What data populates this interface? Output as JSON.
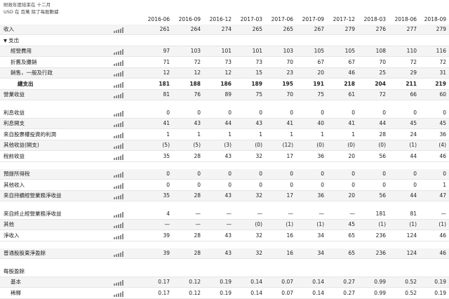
{
  "header": {
    "note_fiscal": "財政年度結束在 十二月",
    "note_units": "USD 在 百萬 除了每股數據"
  },
  "columns": [
    "2016-06",
    "2016-09",
    "2016-12",
    "2017-03",
    "2017-06",
    "2017-09",
    "2017-12",
    "2018-03",
    "2018-06",
    "2018-09"
  ],
  "icons": {
    "sparkline": "bar-chart-icon",
    "expand": "triangle-down-icon"
  },
  "rows": [
    {
      "type": "data",
      "label": "收入",
      "indent": 0,
      "spark": true,
      "values": [
        "261",
        "264",
        "274",
        "265",
        "265",
        "267",
        "279",
        "276",
        "277",
        "279"
      ]
    },
    {
      "type": "section",
      "label": "支出",
      "indent": 0,
      "spark": false,
      "values": []
    },
    {
      "type": "data",
      "label": "經營費用",
      "indent": 1,
      "spark": true,
      "values": [
        "97",
        "103",
        "101",
        "101",
        "103",
        "105",
        "105",
        "108",
        "110",
        "116"
      ]
    },
    {
      "type": "data",
      "label": "折舊及攤銷",
      "indent": 1,
      "spark": true,
      "values": [
        "71",
        "72",
        "73",
        "73",
        "70",
        "67",
        "67",
        "70",
        "72",
        "72"
      ]
    },
    {
      "type": "data",
      "label": "銷售，一般及行政",
      "indent": 1,
      "spark": true,
      "values": [
        "12",
        "12",
        "12",
        "15",
        "23",
        "20",
        "46",
        "25",
        "29",
        "31"
      ]
    },
    {
      "type": "data",
      "label": "總支出",
      "indent": 2,
      "bold": true,
      "spark": true,
      "values": [
        "181",
        "188",
        "186",
        "189",
        "195",
        "191",
        "218",
        "204",
        "211",
        "219"
      ]
    },
    {
      "type": "data",
      "label": "營業收益",
      "indent": 0,
      "spark": true,
      "values": [
        "81",
        "76",
        "89",
        "75",
        "70",
        "75",
        "61",
        "72",
        "66",
        "60"
      ]
    },
    {
      "type": "gap"
    },
    {
      "type": "data",
      "label": "利息收益",
      "indent": 0,
      "spark": true,
      "values": [
        "0",
        "0",
        "0",
        "0",
        "0",
        "0",
        "0",
        "0",
        "0",
        "0"
      ]
    },
    {
      "type": "data",
      "label": "利息開支",
      "indent": 0,
      "spark": true,
      "values": [
        "41",
        "43",
        "44",
        "43",
        "41",
        "40",
        "41",
        "44",
        "45",
        "45"
      ]
    },
    {
      "type": "data",
      "label": "來自股票權投資的利潤",
      "indent": 0,
      "spark": true,
      "values": [
        "1",
        "1",
        "1",
        "1",
        "1",
        "1",
        "1",
        "28",
        "24",
        "36"
      ]
    },
    {
      "type": "data",
      "label": "其他收益(開支)",
      "indent": 0,
      "spark": true,
      "values": [
        "(5)",
        "(5)",
        "(3)",
        "(0)",
        "(12)",
        "(0)",
        "(0)",
        "(0)",
        "(1)",
        "(4)"
      ]
    },
    {
      "type": "data",
      "label": "稅前收益",
      "indent": 0,
      "spark": true,
      "values": [
        "35",
        "28",
        "43",
        "32",
        "17",
        "36",
        "20",
        "56",
        "44",
        "46"
      ]
    },
    {
      "type": "gap"
    },
    {
      "type": "data",
      "label": "預提所得稅",
      "indent": 0,
      "spark": true,
      "values": [
        "0",
        "0",
        "0",
        "0",
        "0",
        "0",
        "0",
        "0",
        "0",
        "0"
      ]
    },
    {
      "type": "data",
      "label": "其他收入",
      "indent": 0,
      "spark": true,
      "values": [
        "0",
        "0",
        "0",
        "0",
        "0",
        "0",
        "0",
        "0",
        "0",
        "1"
      ]
    },
    {
      "type": "data",
      "label": "來自持續經營業務淨收益",
      "indent": 0,
      "spark": true,
      "values": [
        "35",
        "28",
        "43",
        "32",
        "17",
        "36",
        "20",
        "56",
        "44",
        "47"
      ]
    },
    {
      "type": "gap"
    },
    {
      "type": "data",
      "label": "來自終止經營業務淨收益",
      "indent": 0,
      "spark": true,
      "values": [
        "4",
        "—",
        "—",
        "—",
        "—",
        "—",
        "—",
        "181",
        "81",
        "—"
      ]
    },
    {
      "type": "data",
      "label": "其他",
      "indent": 0,
      "spark": true,
      "values": [
        "—",
        "—",
        "—",
        "(0)",
        "(1)",
        "(1)",
        "45",
        "(1)",
        "(1)",
        "(1)"
      ]
    },
    {
      "type": "data",
      "label": "淨收入",
      "indent": 0,
      "spark": true,
      "values": [
        "39",
        "28",
        "43",
        "32",
        "16",
        "34",
        "65",
        "236",
        "124",
        "46"
      ]
    },
    {
      "type": "gap"
    },
    {
      "type": "data",
      "label": "普通股股東淨盈餘",
      "indent": 0,
      "spark": true,
      "values": [
        "39",
        "28",
        "43",
        "32",
        "16",
        "34",
        "65",
        "236",
        "124",
        "46"
      ]
    },
    {
      "type": "gap"
    },
    {
      "type": "data",
      "label": "每股盈餘",
      "indent": 0,
      "spark": false,
      "values": [
        "",
        "",
        "",
        "",
        "",
        "",
        "",
        "",
        "",
        ""
      ]
    },
    {
      "type": "data",
      "label": "基本",
      "indent": 1,
      "spark": true,
      "values": [
        "0.17",
        "0.12",
        "0.19",
        "0.14",
        "0.07",
        "0.14",
        "0.27",
        "0.99",
        "0.52",
        "0.19"
      ]
    },
    {
      "type": "data",
      "label": "稀釋",
      "indent": 1,
      "spark": true,
      "values": [
        "0.17",
        "0.12",
        "0.19",
        "0.14",
        "0.07",
        "0.14",
        "0.27",
        "0.99",
        "0.52",
        "0.19"
      ]
    }
  ]
}
